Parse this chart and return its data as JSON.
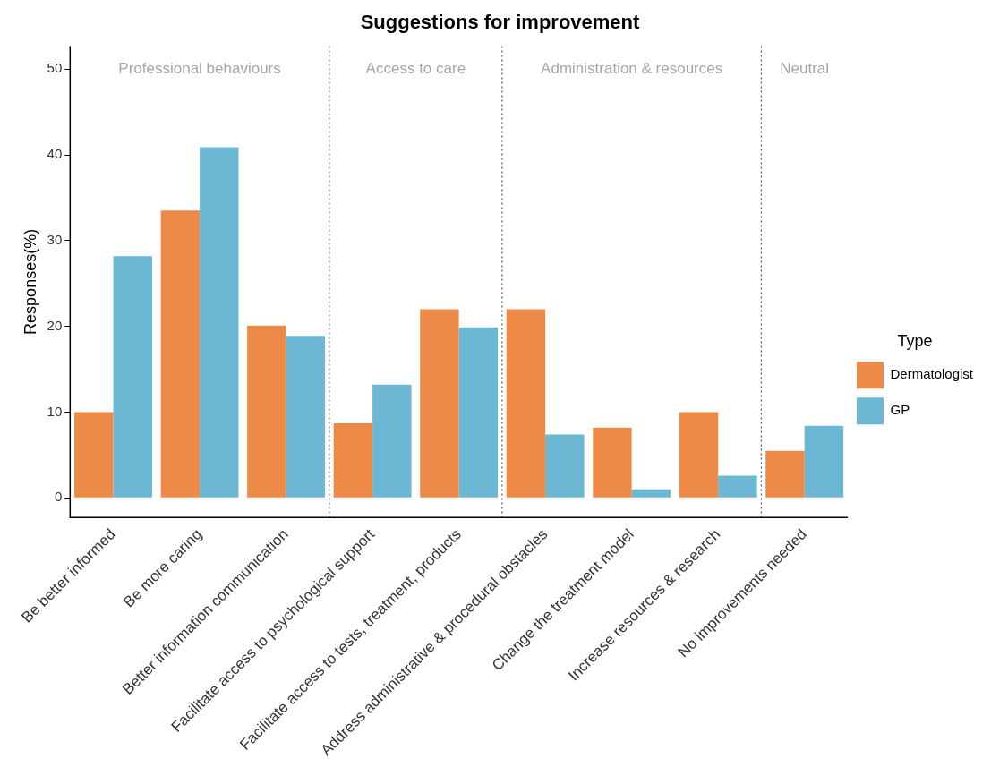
{
  "chart_data": {
    "type": "bar",
    "title": "Suggestions for improvement",
    "ylabel": "Responses(%)",
    "legend_title": "Type",
    "categories": [
      "Be better informed",
      "Be more caring",
      "Better information communication",
      "Facilitate access to psychological support",
      "Facilitate access to tests, treatment, products",
      "Address administrative & procedural obstacles",
      "Change the treatment model",
      "Increase resources & research",
      "No improvements needed"
    ],
    "series": [
      {
        "name": "Dermatologist",
        "color": "#ee8a47",
        "values": [
          10.0,
          33.5,
          20.1,
          8.7,
          22.0,
          22.0,
          8.2,
          10.0,
          5.5
        ]
      },
      {
        "name": "GP",
        "color": "#6cb8d4",
        "values": [
          28.2,
          40.9,
          18.9,
          13.2,
          19.9,
          7.4,
          1.0,
          2.6,
          8.4
        ]
      }
    ],
    "annotations": [
      "Professional behaviours",
      "Access to care",
      "Administration & resources",
      "Neutral"
    ],
    "ylim": [
      -2.3,
      52.7
    ],
    "yticks": [
      0,
      10,
      20,
      30,
      40,
      50
    ],
    "grid": false,
    "legend": "right"
  }
}
